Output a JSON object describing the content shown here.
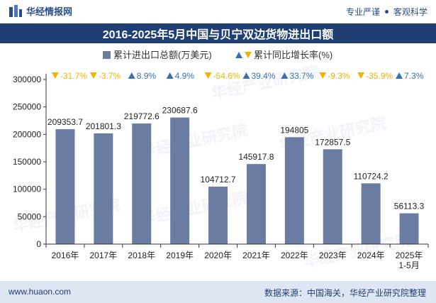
{
  "header": {
    "logo_text": "华经情报网",
    "tagline_left": "专业严谨",
    "tagline_right": "客观科学"
  },
  "title": "2016-2025年5月中国与贝宁双边货物进出口额",
  "footer": {
    "website": "www.huaon.com",
    "source": "数据来源：中国海关，华经产业研究院整理"
  },
  "watermark": "华经产业研究院",
  "colors": {
    "bar": "#6b7ca3",
    "up": "#3a6fb0",
    "down": "#f0b400",
    "title_bg": "#1f3e73"
  },
  "chart_data": {
    "type": "bar",
    "title": "2016-2025年5月中国与贝宁双边货物进出口额",
    "categories": [
      "2016年",
      "2017年",
      "2018年",
      "2019年",
      "2020年",
      "2021年",
      "2022年",
      "2023年",
      "2024年",
      "2025年\n1-5月"
    ],
    "series": [
      {
        "name": "累计进出口总额(万美元)",
        "values": [
          209353.7,
          201801.3,
          219772.6,
          230687.6,
          104712.7,
          145917.8,
          194805,
          172857.5,
          110724.2,
          56113.3
        ],
        "labels": [
          "209353.7",
          "201801.3",
          "219772.6",
          "230687.6",
          "104712.7",
          "145917.8",
          "194805",
          "172857.5",
          "110724.2",
          "56113.3"
        ]
      },
      {
        "name": "累计同比增长率(%)",
        "values": [
          -31.7,
          -3.7,
          8.9,
          4.9,
          -54.6,
          39.4,
          33.7,
          -9.3,
          -35.9,
          7.3
        ],
        "labels": [
          "-31.7%",
          "-3.7%",
          "8.9%",
          "4.9%",
          "-54.6%",
          "39.4%",
          "33.7%",
          "-9.3%",
          "-35.9%",
          "7.3%"
        ]
      }
    ],
    "ylim": [
      0,
      300000
    ],
    "yticks": [
      "0",
      "50000",
      "100000",
      "150000",
      "200000",
      "250000",
      "300000"
    ],
    "ytick_values": [
      0,
      50000,
      100000,
      150000,
      200000,
      250000,
      300000
    ],
    "legend": [
      "累计进出口总额(万美元)",
      "累计同比增长率(%)"
    ],
    "legend_position": "top-center",
    "grid": false
  }
}
